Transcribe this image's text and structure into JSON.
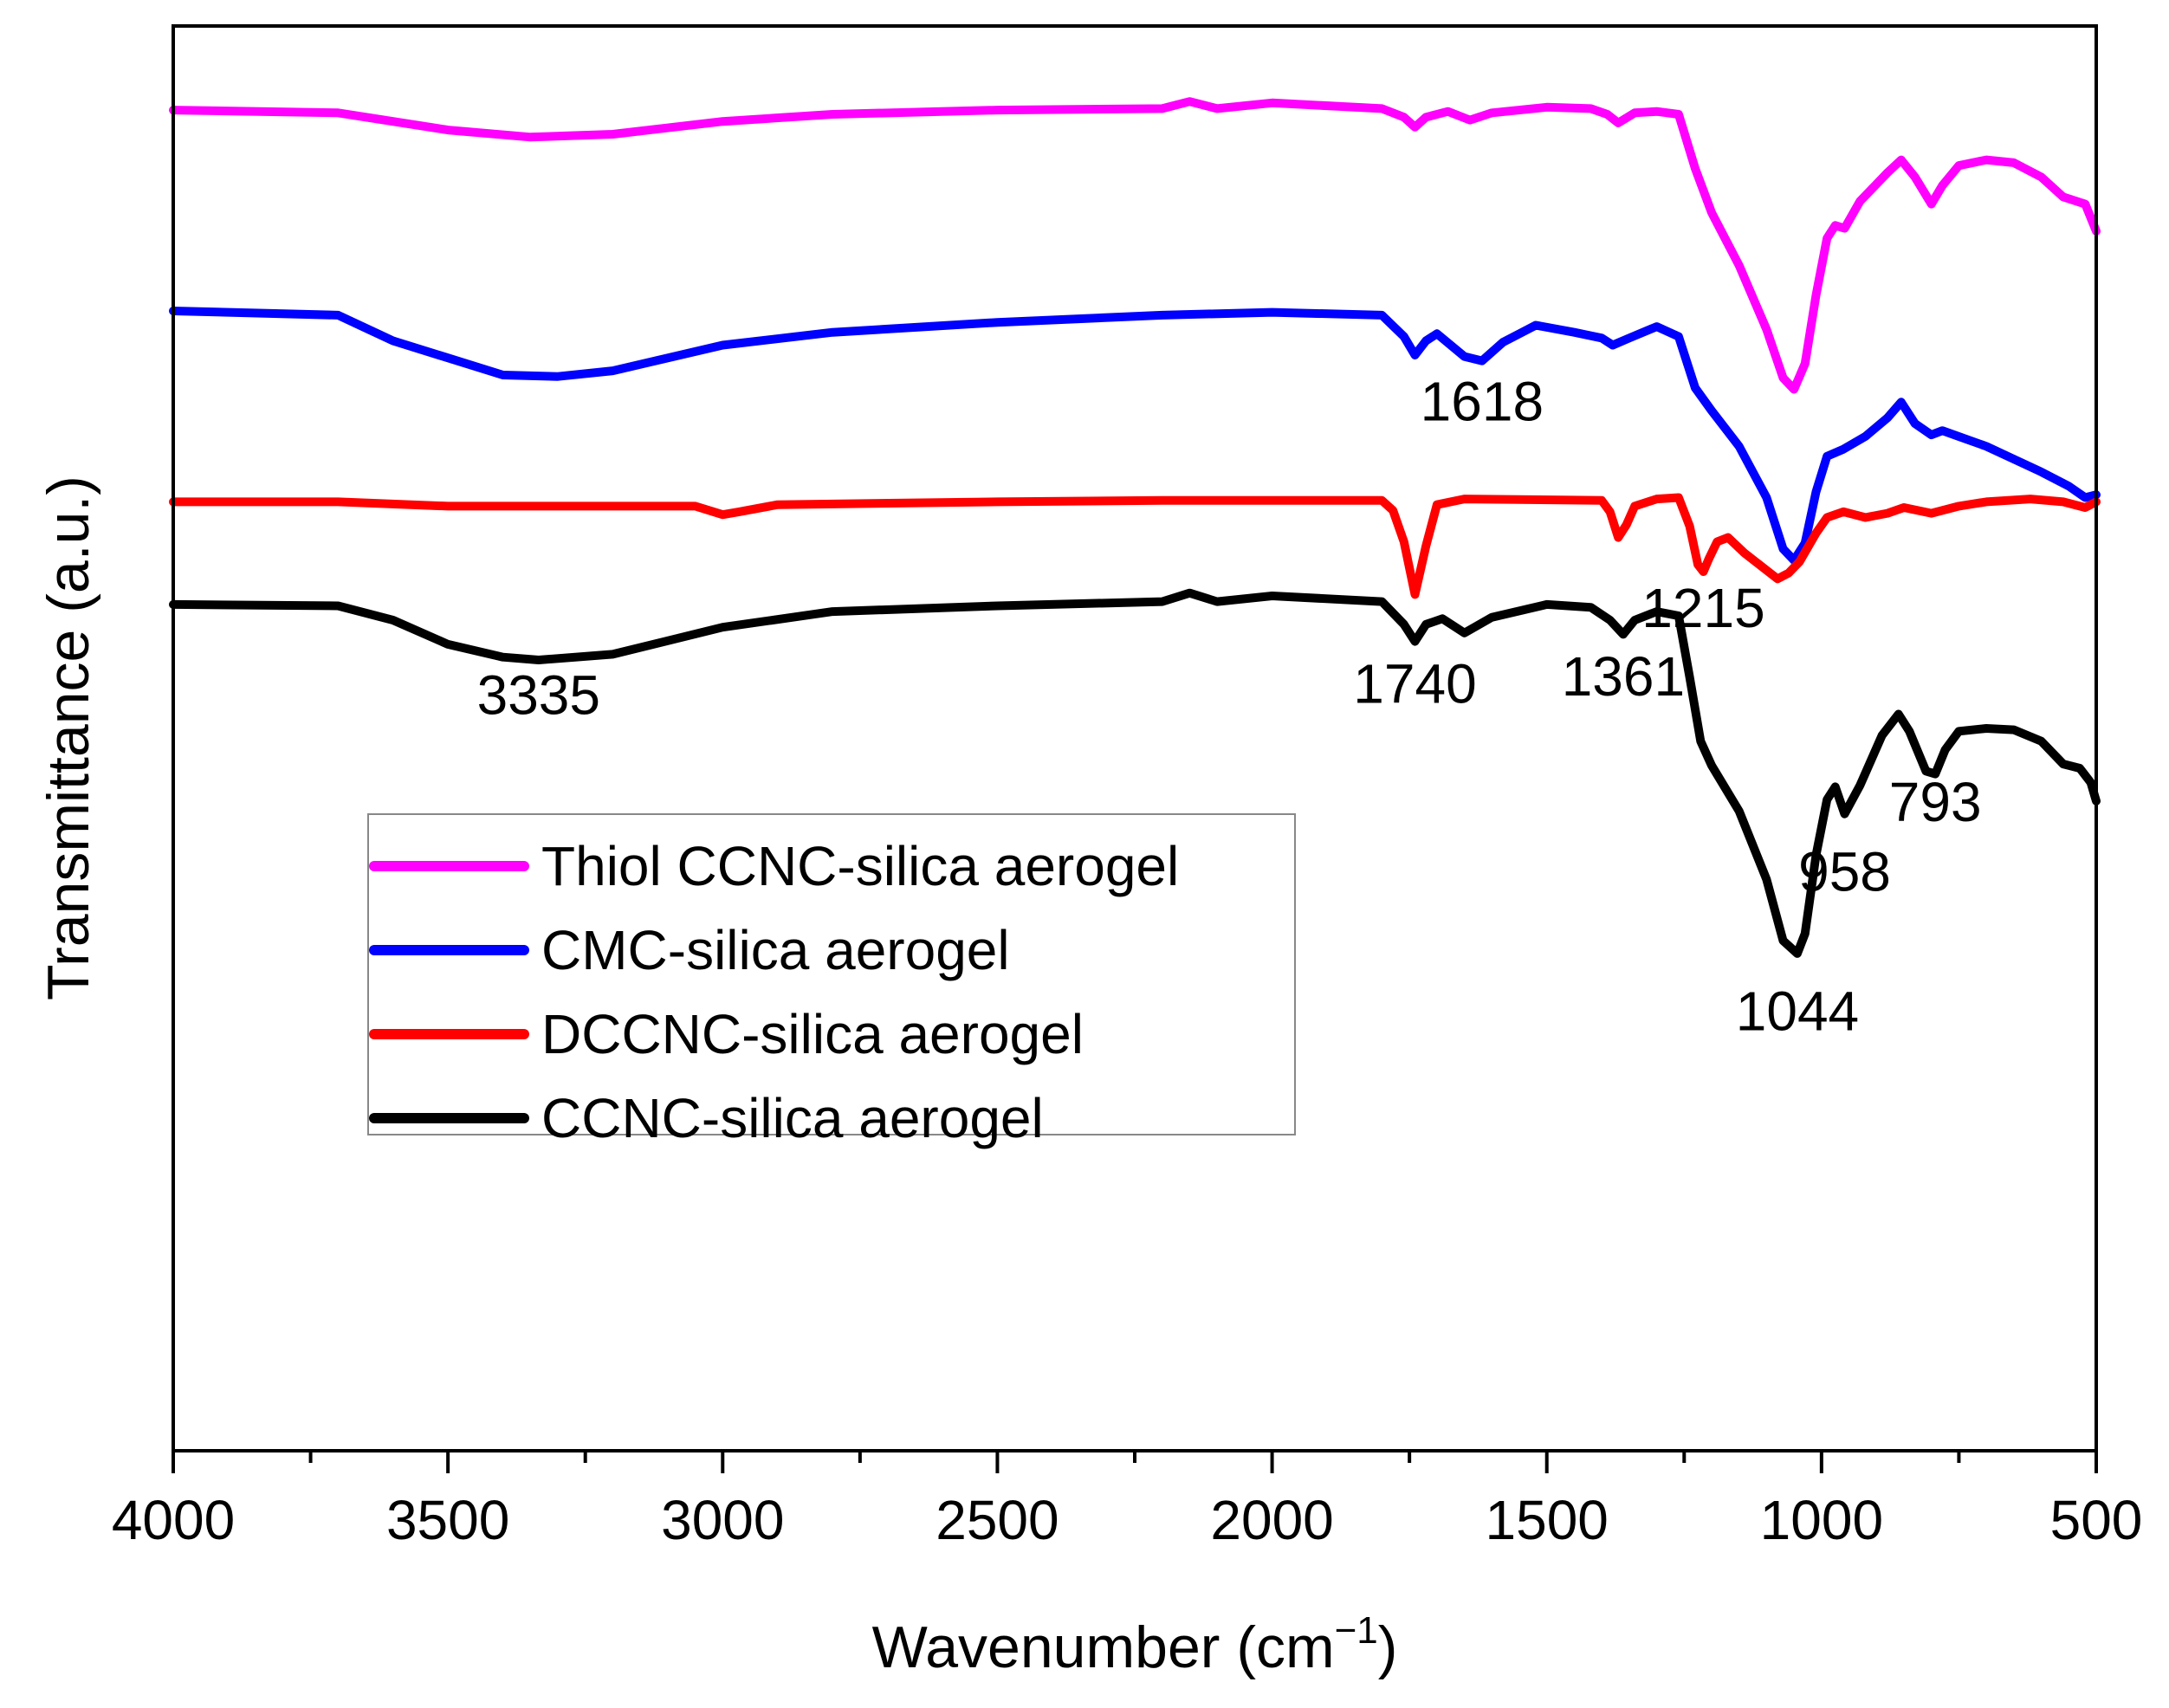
{
  "chart_data": {
    "type": "line",
    "title": "",
    "xlabel": "Wavenumber (cm",
    "xlabel_sup": "−1",
    "xlabel_close": ")",
    "ylabel": "Transmittance (a.u.)",
    "xlim": [
      4000,
      500
    ],
    "ylim": [
      0,
      100
    ],
    "x_ticks": [
      4000,
      3500,
      3000,
      2500,
      2000,
      1500,
      1000,
      500
    ],
    "x_tick_labels": [
      "4000",
      "3500",
      "3000",
      "2500",
      "2000",
      "1500",
      "1000",
      "500"
    ],
    "y_ticks_shown": false,
    "grid": false,
    "legend_position": "center-left",
    "series": [
      {
        "name": "Thiol CCNC-silica aerogel",
        "color": "#ff00ff",
        "points": [
          [
            4000,
            94.1
          ],
          [
            3700,
            93.9
          ],
          [
            3500,
            92.7
          ],
          [
            3350,
            92.2
          ],
          [
            3200,
            92.4
          ],
          [
            3000,
            93.3
          ],
          [
            2800,
            93.8
          ],
          [
            2500,
            94.1
          ],
          [
            2200,
            94.2
          ],
          [
            2150,
            94.7
          ],
          [
            2100,
            94.2
          ],
          [
            2000,
            94.6
          ],
          [
            1800,
            94.2
          ],
          [
            1760,
            93.6
          ],
          [
            1740,
            92.9
          ],
          [
            1720,
            93.6
          ],
          [
            1680,
            94.0
          ],
          [
            1640,
            93.4
          ],
          [
            1600,
            93.9
          ],
          [
            1500,
            94.3
          ],
          [
            1420,
            94.2
          ],
          [
            1390,
            93.8
          ],
          [
            1370,
            93.2
          ],
          [
            1340,
            93.9
          ],
          [
            1300,
            94.0
          ],
          [
            1260,
            93.8
          ],
          [
            1230,
            90.0
          ],
          [
            1200,
            86.9
          ],
          [
            1150,
            83.2
          ],
          [
            1100,
            78.7
          ],
          [
            1070,
            75.3
          ],
          [
            1050,
            74.5
          ],
          [
            1030,
            76.3
          ],
          [
            1010,
            81.1
          ],
          [
            990,
            85.1
          ],
          [
            975,
            86.0
          ],
          [
            958,
            85.8
          ],
          [
            930,
            87.7
          ],
          [
            880,
            89.7
          ],
          [
            855,
            90.6
          ],
          [
            830,
            89.4
          ],
          [
            800,
            87.5
          ],
          [
            780,
            88.8
          ],
          [
            750,
            90.2
          ],
          [
            700,
            90.6
          ],
          [
            650,
            90.4
          ],
          [
            600,
            89.4
          ],
          [
            560,
            88.0
          ],
          [
            520,
            87.5
          ],
          [
            500,
            85.6
          ]
        ]
      },
      {
        "name": "CMC-silica aerogel",
        "color": "#0000ff",
        "points": [
          [
            4000,
            80.0
          ],
          [
            3700,
            79.7
          ],
          [
            3600,
            77.9
          ],
          [
            3400,
            75.5
          ],
          [
            3300,
            75.4
          ],
          [
            3200,
            75.8
          ],
          [
            3000,
            77.6
          ],
          [
            2800,
            78.5
          ],
          [
            2500,
            79.2
          ],
          [
            2200,
            79.7
          ],
          [
            2000,
            79.9
          ],
          [
            1800,
            79.7
          ],
          [
            1760,
            78.2
          ],
          [
            1740,
            76.9
          ],
          [
            1720,
            77.9
          ],
          [
            1700,
            78.4
          ],
          [
            1650,
            76.8
          ],
          [
            1618,
            76.5
          ],
          [
            1580,
            77.8
          ],
          [
            1520,
            79.0
          ],
          [
            1450,
            78.5
          ],
          [
            1400,
            78.1
          ],
          [
            1380,
            77.6
          ],
          [
            1350,
            78.1
          ],
          [
            1300,
            78.9
          ],
          [
            1260,
            78.2
          ],
          [
            1230,
            74.6
          ],
          [
            1200,
            73.0
          ],
          [
            1150,
            70.5
          ],
          [
            1100,
            66.9
          ],
          [
            1070,
            63.3
          ],
          [
            1050,
            62.5
          ],
          [
            1030,
            63.7
          ],
          [
            1010,
            67.3
          ],
          [
            990,
            69.8
          ],
          [
            960,
            70.3
          ],
          [
            920,
            71.2
          ],
          [
            880,
            72.5
          ],
          [
            855,
            73.6
          ],
          [
            830,
            72.1
          ],
          [
            800,
            71.3
          ],
          [
            780,
            71.6
          ],
          [
            700,
            70.5
          ],
          [
            650,
            69.6
          ],
          [
            600,
            68.7
          ],
          [
            550,
            67.7
          ],
          [
            520,
            66.9
          ],
          [
            500,
            67.1
          ]
        ]
      },
      {
        "name": "DCCNC-silica aerogel",
        "color": "#ff0000",
        "points": [
          [
            4000,
            66.6
          ],
          [
            3700,
            66.6
          ],
          [
            3500,
            66.3
          ],
          [
            3200,
            66.3
          ],
          [
            3050,
            66.3
          ],
          [
            3000,
            65.7
          ],
          [
            2970,
            65.9
          ],
          [
            2900,
            66.4
          ],
          [
            2500,
            66.6
          ],
          [
            2200,
            66.7
          ],
          [
            2000,
            66.7
          ],
          [
            1800,
            66.7
          ],
          [
            1780,
            66.0
          ],
          [
            1760,
            63.8
          ],
          [
            1740,
            60.1
          ],
          [
            1720,
            63.5
          ],
          [
            1700,
            66.4
          ],
          [
            1650,
            66.8
          ],
          [
            1400,
            66.7
          ],
          [
            1385,
            65.9
          ],
          [
            1370,
            64.1
          ],
          [
            1355,
            65.0
          ],
          [
            1340,
            66.3
          ],
          [
            1300,
            66.8
          ],
          [
            1260,
            66.9
          ],
          [
            1240,
            64.9
          ],
          [
            1225,
            62.2
          ],
          [
            1215,
            61.7
          ],
          [
            1205,
            62.6
          ],
          [
            1190,
            63.8
          ],
          [
            1170,
            64.1
          ],
          [
            1140,
            63.0
          ],
          [
            1100,
            61.8
          ],
          [
            1080,
            61.2
          ],
          [
            1060,
            61.6
          ],
          [
            1040,
            62.4
          ],
          [
            1010,
            64.4
          ],
          [
            990,
            65.5
          ],
          [
            960,
            65.9
          ],
          [
            920,
            65.5
          ],
          [
            880,
            65.8
          ],
          [
            850,
            66.2
          ],
          [
            800,
            65.8
          ],
          [
            750,
            66.3
          ],
          [
            700,
            66.6
          ],
          [
            620,
            66.8
          ],
          [
            560,
            66.6
          ],
          [
            520,
            66.2
          ],
          [
            500,
            66.6
          ]
        ]
      },
      {
        "name": "CCNC-silica aerogel",
        "color": "#000000",
        "points": [
          [
            4000,
            59.4
          ],
          [
            3700,
            59.3
          ],
          [
            3600,
            58.3
          ],
          [
            3500,
            56.6
          ],
          [
            3400,
            55.7
          ],
          [
            3335,
            55.5
          ],
          [
            3200,
            55.9
          ],
          [
            3000,
            57.8
          ],
          [
            2800,
            58.9
          ],
          [
            2500,
            59.3
          ],
          [
            2200,
            59.6
          ],
          [
            2150,
            60.2
          ],
          [
            2100,
            59.6
          ],
          [
            2000,
            60.0
          ],
          [
            1800,
            59.6
          ],
          [
            1760,
            58.0
          ],
          [
            1740,
            56.8
          ],
          [
            1720,
            58.0
          ],
          [
            1690,
            58.4
          ],
          [
            1650,
            57.4
          ],
          [
            1600,
            58.5
          ],
          [
            1500,
            59.4
          ],
          [
            1420,
            59.2
          ],
          [
            1385,
            58.3
          ],
          [
            1361,
            57.3
          ],
          [
            1340,
            58.3
          ],
          [
            1300,
            58.9
          ],
          [
            1260,
            58.6
          ],
          [
            1240,
            54.3
          ],
          [
            1220,
            49.8
          ],
          [
            1200,
            48.1
          ],
          [
            1150,
            44.9
          ],
          [
            1100,
            40.1
          ],
          [
            1070,
            35.8
          ],
          [
            1044,
            34.9
          ],
          [
            1030,
            36.3
          ],
          [
            1010,
            41.8
          ],
          [
            990,
            45.7
          ],
          [
            975,
            46.6
          ],
          [
            958,
            44.7
          ],
          [
            930,
            46.7
          ],
          [
            890,
            50.2
          ],
          [
            860,
            51.7
          ],
          [
            840,
            50.5
          ],
          [
            810,
            47.7
          ],
          [
            793,
            47.5
          ],
          [
            775,
            49.2
          ],
          [
            750,
            50.5
          ],
          [
            700,
            50.7
          ],
          [
            650,
            50.6
          ],
          [
            600,
            49.8
          ],
          [
            560,
            48.2
          ],
          [
            530,
            47.9
          ],
          [
            510,
            46.9
          ],
          [
            500,
            45.6
          ]
        ]
      }
    ],
    "annotations": [
      {
        "text": "1618",
        "x": 1618,
        "y": 72.3
      },
      {
        "text": "3335",
        "x": 3335,
        "y": 51.7
      },
      {
        "text": "1740",
        "x": 1740,
        "y": 52.5
      },
      {
        "text": "1361",
        "x": 1361,
        "y": 53.0
      },
      {
        "text": "1215",
        "x": 1215,
        "y": 57.8
      },
      {
        "text": "793",
        "x": 793,
        "y": 44.2
      },
      {
        "text": "958",
        "x": 958,
        "y": 39.3
      },
      {
        "text": "1044",
        "x": 1044,
        "y": 29.5
      }
    ]
  }
}
